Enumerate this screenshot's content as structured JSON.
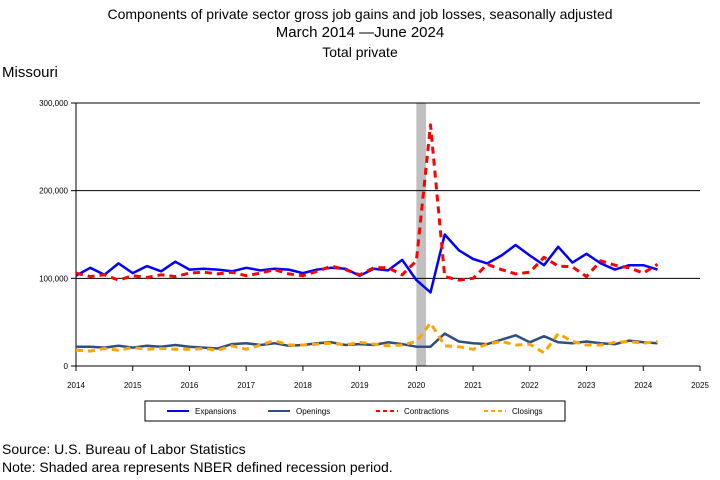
{
  "title": {
    "line1": "Components of private sector gross job gains and job losses, seasonally adjusted",
    "line2": "March 2014 —June 2024",
    "line3": "Total private"
  },
  "region_label": "Missouri",
  "source": "Source: U.S. Bureau of Labor Statistics",
  "note": "Note: Shaded area represents NBER defined recession period.",
  "colors": {
    "expansions": "#0000ff",
    "openings": "#2f4f7f",
    "contractions": "#ff0000",
    "closings": "#ffa500",
    "recession": "#c0c0c0"
  },
  "chart_data": {
    "type": "line",
    "xlim": [
      2014,
      2025
    ],
    "ylim": [
      0,
      300000
    ],
    "x_ticks": [
      "2014",
      "2015",
      "2016",
      "2017",
      "2018",
      "2019",
      "2020",
      "2021",
      "2022",
      "2023",
      "2024",
      "2025"
    ],
    "y_ticks": [
      "0",
      "100,000",
      "200,000",
      "300,000"
    ],
    "gridlines": [
      100000,
      200000,
      300000
    ],
    "recession": [
      2020.0,
      2020.17
    ],
    "legend_position": "bottom",
    "x": [
      2014.0,
      2014.25,
      2014.5,
      2014.75,
      2015.0,
      2015.25,
      2015.5,
      2015.75,
      2016.0,
      2016.25,
      2016.5,
      2016.75,
      2017.0,
      2017.25,
      2017.5,
      2017.75,
      2018.0,
      2018.25,
      2018.5,
      2018.75,
      2019.0,
      2019.25,
      2019.5,
      2019.75,
      2020.0,
      2020.25,
      2020.5,
      2020.75,
      2021.0,
      2021.25,
      2021.5,
      2021.75,
      2022.0,
      2022.25,
      2022.5,
      2022.75,
      2023.0,
      2023.25,
      2023.5,
      2023.75,
      2024.0,
      2024.25
    ],
    "series": [
      {
        "name": "Expansions",
        "style": "solid",
        "values": [
          103000,
          112000,
          104000,
          117000,
          106000,
          114000,
          108000,
          119000,
          110000,
          111000,
          110000,
          108000,
          112000,
          109000,
          111000,
          110000,
          106000,
          110000,
          112000,
          111000,
          103000,
          111000,
          109000,
          121000,
          98000,
          84000,
          150000,
          132000,
          122000,
          117000,
          126000,
          138000,
          126000,
          115000,
          136000,
          118000,
          128000,
          117000,
          110000,
          115000,
          115000,
          110000
        ]
      },
      {
        "name": "Openings",
        "style": "solid",
        "values": [
          22000,
          22000,
          21000,
          23000,
          21000,
          23000,
          22000,
          24000,
          22000,
          21000,
          20000,
          25000,
          26000,
          24000,
          26000,
          23000,
          24000,
          26000,
          27000,
          24000,
          25000,
          24000,
          27000,
          25000,
          22000,
          22000,
          37000,
          28000,
          26000,
          25000,
          30000,
          35000,
          27000,
          34000,
          27000,
          26000,
          28000,
          26000,
          25000,
          29000,
          27000,
          26000
        ]
      },
      {
        "name": "Contractions",
        "style": "dashed",
        "values": [
          106000,
          102000,
          104000,
          98000,
          103000,
          101000,
          104000,
          102000,
          106000,
          107000,
          105000,
          107000,
          103000,
          106000,
          110000,
          105000,
          103000,
          108000,
          114000,
          110000,
          104000,
          112000,
          112000,
          104000,
          120000,
          275000,
          102000,
          98000,
          100000,
          116000,
          110000,
          105000,
          107000,
          124000,
          114000,
          113000,
          102000,
          120000,
          115000,
          112000,
          106000,
          116000
        ]
      },
      {
        "name": "Closings",
        "style": "dashed",
        "values": [
          18000,
          17000,
          20000,
          18000,
          21000,
          19000,
          20000,
          19000,
          19000,
          20000,
          18000,
          23000,
          19000,
          24000,
          29000,
          24000,
          24000,
          25000,
          26000,
          24000,
          27000,
          25000,
          23000,
          24000,
          28000,
          49000,
          23000,
          22000,
          19000,
          25000,
          28000,
          24000,
          25000,
          15000,
          37000,
          28000,
          24000,
          24000,
          27000,
          28000,
          26000,
          28000
        ]
      }
    ]
  }
}
